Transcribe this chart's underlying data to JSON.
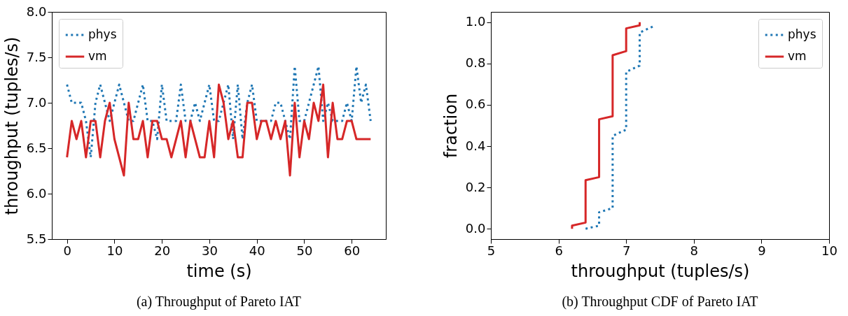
{
  "chart_data": [
    {
      "type": "line",
      "title": "(a) Throughput of Pareto IAT",
      "xlabel": "time (s)",
      "ylabel": "throughput (tuples/s)",
      "x": [
        0,
        1,
        2,
        3,
        4,
        5,
        6,
        7,
        8,
        9,
        10,
        11,
        12,
        13,
        14,
        15,
        16,
        17,
        18,
        19,
        20,
        21,
        22,
        23,
        24,
        25,
        26,
        27,
        28,
        29,
        30,
        31,
        32,
        33,
        34,
        35,
        36,
        37,
        38,
        39,
        40,
        41,
        42,
        43,
        44,
        45,
        46,
        47,
        48,
        49,
        50,
        51,
        52,
        53,
        54,
        55,
        56,
        57,
        58,
        59,
        60,
        61,
        62,
        63,
        64
      ],
      "series": [
        {
          "name": "phys",
          "color": "#1f77b4",
          "line_style": "dotted",
          "values": [
            7.2,
            7.0,
            7.0,
            7.0,
            6.8,
            6.4,
            7.0,
            7.2,
            7.0,
            6.8,
            7.0,
            7.2,
            7.0,
            6.8,
            6.8,
            7.0,
            7.2,
            6.8,
            6.8,
            6.6,
            7.2,
            6.8,
            6.8,
            6.8,
            7.2,
            6.8,
            6.8,
            7.0,
            6.8,
            7.0,
            7.2,
            6.8,
            6.8,
            7.0,
            7.2,
            6.6,
            7.2,
            6.6,
            7.0,
            7.2,
            6.8,
            6.8,
            6.8,
            6.8,
            7.0,
            7.0,
            6.8,
            6.6,
            7.4,
            6.8,
            6.8,
            7.0,
            7.2,
            7.4,
            6.8,
            7.0,
            6.8,
            6.8,
            6.8,
            7.0,
            6.8,
            7.4,
            7.0,
            7.2,
            6.8
          ]
        },
        {
          "name": "vm",
          "color": "#d62728",
          "line_style": "solid",
          "values": [
            6.4,
            6.8,
            6.6,
            6.8,
            6.4,
            6.8,
            6.8,
            6.4,
            6.8,
            7.0,
            6.6,
            6.4,
            6.2,
            7.0,
            6.6,
            6.6,
            6.8,
            6.4,
            6.8,
            6.8,
            6.6,
            6.6,
            6.4,
            6.6,
            6.8,
            6.4,
            6.8,
            6.6,
            6.4,
            6.4,
            6.8,
            6.4,
            7.2,
            7.0,
            6.6,
            6.8,
            6.4,
            6.4,
            7.0,
            7.0,
            6.6,
            6.8,
            6.8,
            6.6,
            6.8,
            6.6,
            6.8,
            6.2,
            7.0,
            6.4,
            6.8,
            6.6,
            7.0,
            6.8,
            7.2,
            6.4,
            7.0,
            6.6,
            6.6,
            6.8,
            6.8,
            6.6,
            6.6,
            6.6,
            6.6
          ]
        }
      ],
      "xlim": [
        -3.2,
        67.2
      ],
      "xticks": [
        0,
        10,
        20,
        30,
        40,
        50,
        60
      ],
      "ylim": [
        5.5,
        8.0
      ],
      "yticks": [
        5.5,
        {
          "value": 6,
          "label": "6.0"
        },
        6.5,
        {
          "value": 7,
          "label": "7.0"
        },
        7.5,
        {
          "value": 8,
          "label": "8.0"
        }
      ],
      "legend": "top left"
    },
    {
      "type": "line",
      "title": "(b) Throughput CDF of Pareto IAT",
      "xlabel": "throughput (tuples/s)",
      "ylabel": "fraction",
      "series": [
        {
          "name": "phys",
          "color": "#1f77b4",
          "line_style": "dotted",
          "x": [
            6.4,
            6.6,
            6.6,
            6.8,
            6.8,
            7.0,
            7.0,
            7.2,
            7.2,
            7.4
          ],
          "values": [
            0.0,
            0.015,
            0.08,
            0.1,
            0.45,
            0.48,
            0.76,
            0.79,
            0.95,
            0.98
          ]
        },
        {
          "name": "vm",
          "color": "#d62728",
          "line_style": "solid",
          "x": [
            6.2,
            6.2,
            6.4,
            6.4,
            6.6,
            6.6,
            6.8,
            6.8,
            7.0,
            7.0,
            7.2,
            7.2
          ],
          "values": [
            0.0,
            0.015,
            0.03,
            0.235,
            0.25,
            0.53,
            0.545,
            0.84,
            0.86,
            0.97,
            0.985,
            1.0
          ]
        }
      ],
      "xlim": [
        5,
        10
      ],
      "xticks": [
        5,
        6,
        7,
        8,
        9,
        10
      ],
      "ylim": [
        -0.05,
        1.05
      ],
      "yticks": [
        {
          "value": 0,
          "label": "0.0"
        },
        0.2,
        0.4,
        0.6,
        0.8,
        {
          "value": 1,
          "label": "1.0"
        }
      ],
      "legend": "top right"
    }
  ]
}
